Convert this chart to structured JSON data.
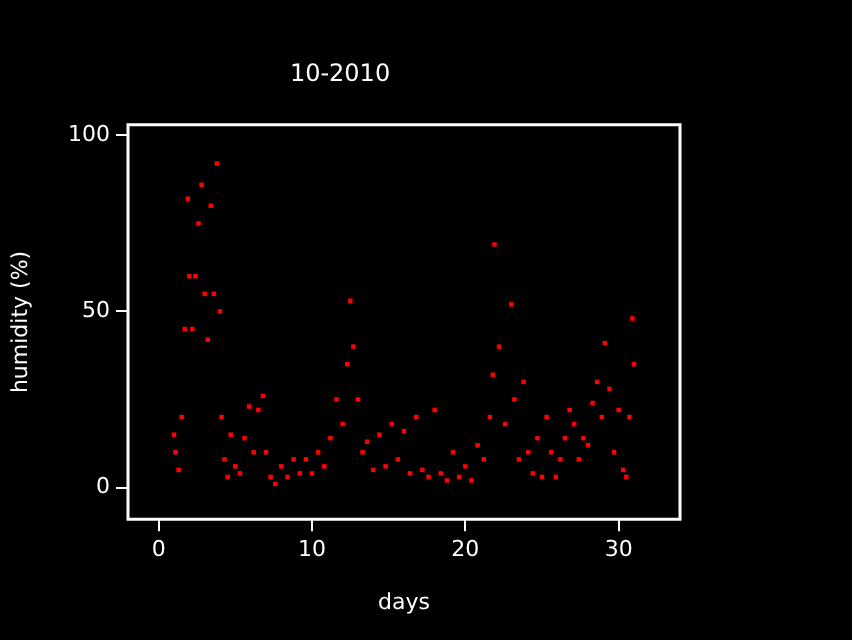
{
  "chart_data": {
    "type": "scatter",
    "title": "10-2010",
    "xlabel": "days",
    "ylabel": "humidity (%)",
    "xlim": [
      -2,
      34
    ],
    "xticks": [
      0,
      10,
      20,
      30
    ],
    "ylim": [
      -9,
      103
    ],
    "yticks": [
      0,
      50,
      100
    ],
    "grid": false,
    "legend": false,
    "marker": "square",
    "series": [
      {
        "color": "#ff0000",
        "x": [
          1.0,
          1.1,
          1.3,
          1.5,
          1.7,
          1.9,
          2.0,
          2.2,
          2.4,
          2.6,
          2.8,
          3.0,
          3.2,
          3.4,
          3.6,
          3.8,
          4.0,
          4.1,
          4.3,
          4.5,
          4.7,
          5.0,
          5.3,
          5.6,
          5.9,
          6.2,
          6.5,
          6.8,
          7.0,
          7.3,
          7.6,
          8.0,
          8.4,
          8.8,
          9.2,
          9.6,
          10.0,
          10.4,
          10.8,
          11.2,
          11.6,
          12.0,
          12.3,
          12.5,
          12.7,
          13.0,
          13.3,
          13.6,
          14.0,
          14.4,
          14.8,
          15.2,
          15.6,
          16.0,
          16.4,
          16.8,
          17.2,
          17.6,
          18.0,
          18.4,
          18.8,
          19.2,
          19.6,
          20.0,
          20.4,
          20.8,
          21.2,
          21.6,
          21.8,
          21.9,
          22.2,
          22.6,
          23.0,
          23.2,
          23.5,
          23.8,
          24.1,
          24.4,
          24.7,
          25.0,
          25.3,
          25.6,
          25.9,
          26.2,
          26.5,
          26.8,
          27.1,
          27.4,
          27.7,
          28.0,
          28.3,
          28.6,
          28.9,
          29.1,
          29.4,
          29.7,
          30.0,
          30.3,
          30.5,
          30.7,
          30.9,
          31.0
        ],
        "values": [
          15,
          10,
          5,
          20,
          45,
          82,
          60,
          45,
          60,
          75,
          86,
          55,
          42,
          80,
          55,
          92,
          50,
          20,
          8,
          3,
          15,
          6,
          4,
          14,
          23,
          10,
          22,
          26,
          10,
          3,
          1,
          6,
          3,
          8,
          4,
          8,
          4,
          10,
          6,
          14,
          25,
          18,
          35,
          53,
          40,
          25,
          10,
          13,
          5,
          15,
          6,
          18,
          8,
          16,
          4,
          20,
          5,
          3,
          22,
          4,
          2,
          10,
          3,
          6,
          2,
          12,
          8,
          20,
          32,
          69,
          40,
          18,
          52,
          25,
          8,
          30,
          10,
          4,
          14,
          3,
          20,
          10,
          3,
          8,
          14,
          22,
          18,
          8,
          14,
          12,
          24,
          30,
          20,
          41,
          28,
          10,
          22,
          5,
          3,
          20,
          48,
          35
        ]
      }
    ]
  }
}
